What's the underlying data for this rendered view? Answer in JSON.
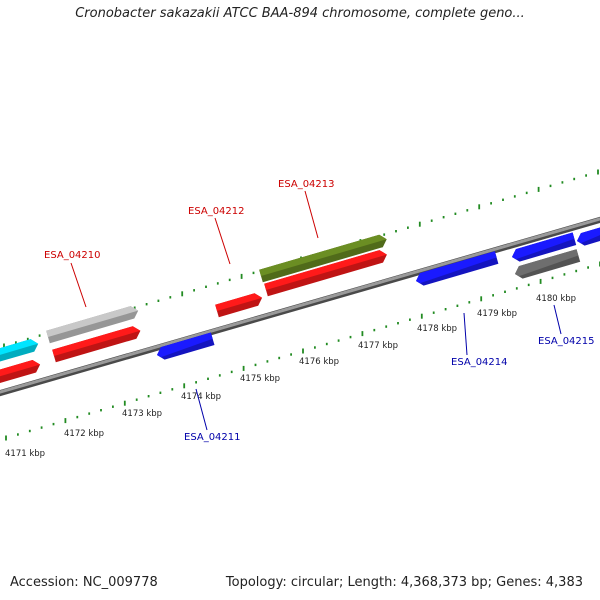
{
  "title": "Cronobacter sakazakii ATCC BAA-894 chromosome, complete geno...",
  "footer": {
    "accession": "Accession: NC_009778",
    "summary": "Topology: circular; Length: 4,368,373 bp; Genes: 4,383"
  },
  "colors": {
    "backbone": "#808080",
    "tick": "#228b22",
    "forward_label": "#cc0000",
    "reverse_label": "#0000aa",
    "red": "#ff1a1a",
    "blue": "#1a1aff",
    "green": "#6b8e23",
    "gray_light": "#c8c8c8",
    "gray_dark": "#6e6e6e",
    "cyan": "#00e5ff"
  },
  "scale_ticks": [
    {
      "label": "4171 kbp"
    },
    {
      "label": "4172 kbp"
    },
    {
      "label": "4173 kbp"
    },
    {
      "label": "4174 kbp"
    },
    {
      "label": "4175 kbp"
    },
    {
      "label": "4176 kbp"
    },
    {
      "label": "4177 kbp"
    },
    {
      "label": "4178 kbp"
    },
    {
      "label": "4179 kbp"
    },
    {
      "label": "4180 kbp"
    }
  ],
  "gene_labels": [
    {
      "text": "ESA_04210",
      "strand": "forward"
    },
    {
      "text": "ESA_04211",
      "strand": "reverse"
    },
    {
      "text": "ESA_04212",
      "strand": "forward"
    },
    {
      "text": "ESA_04213",
      "strand": "forward"
    },
    {
      "text": "ESA_04214",
      "strand": "reverse"
    },
    {
      "text": "ESA_04215",
      "strand": "reverse"
    }
  ],
  "features": [
    {
      "color": "cyan",
      "strand": "forward"
    },
    {
      "color": "red",
      "strand": "forward"
    },
    {
      "color": "gray_light",
      "strand": "forward"
    },
    {
      "color": "red",
      "strand": "forward"
    },
    {
      "color": "blue",
      "strand": "reverse"
    },
    {
      "color": "red",
      "strand": "forward"
    },
    {
      "color": "red",
      "strand": "forward"
    },
    {
      "color": "green",
      "strand": "forward"
    },
    {
      "color": "blue",
      "strand": "reverse"
    },
    {
      "color": "blue",
      "strand": "reverse"
    },
    {
      "color": "gray_dark",
      "strand": "reverse"
    },
    {
      "color": "blue",
      "strand": "reverse"
    }
  ]
}
